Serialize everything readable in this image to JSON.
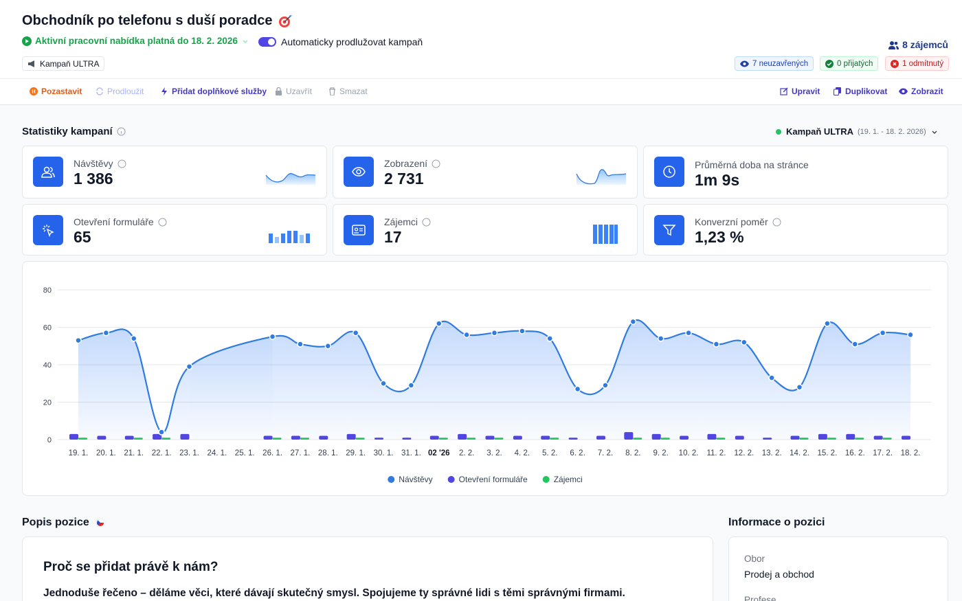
{
  "header": {
    "title": "Obchodník po telefonu s duší poradce",
    "status": "Aktivní pracovní nabídka platná do 18. 2. 2026",
    "toggle_label": "Automaticky prodlužovat kampaň",
    "badge": "Kampaň ULTRA",
    "candidates": "8 zájemců",
    "counts": [
      "7 neuzavřených",
      "0 přijatých",
      "1 odmítnutý"
    ]
  },
  "toolbar": {
    "left": [
      "Pozastavit",
      "Prodloužit",
      "Přidat doplňkové služby",
      "Uzavřít",
      "Smazat"
    ],
    "right": [
      "Upravit",
      "Duplikovat",
      "Zobrazit"
    ]
  },
  "stats": {
    "title": "Statistiky kampaní",
    "campaign": "Kampaň ULTRA",
    "period": "(19. 1. - 18. 2. 2026)",
    "cards": [
      {
        "label": "Návštěvy",
        "value": "1 386"
      },
      {
        "label": "Zobrazení",
        "value": "2 731"
      },
      {
        "label": "Průměrná doba na stránce",
        "value": "1m 9s"
      },
      {
        "label": "Otevření formuláře",
        "value": "65"
      },
      {
        "label": "Zájemci",
        "value": "17"
      },
      {
        "label": "Konverzní poměr",
        "value": "1,23 %"
      }
    ]
  },
  "chart_data": {
    "type": "line",
    "categories": [
      "19. 1.",
      "20. 1.",
      "21. 1.",
      "22. 1.",
      "23. 1.",
      "24. 1.",
      "25. 1.",
      "26. 1.",
      "27. 1.",
      "28. 1.",
      "29. 1.",
      "30. 1.",
      "31. 1.",
      "02 '26",
      "2. 2.",
      "3. 2.",
      "4. 2.",
      "5. 2.",
      "6. 2.",
      "7. 2.",
      "8. 2.",
      "9. 2.",
      "10. 2.",
      "11. 2.",
      "12. 2.",
      "13. 2.",
      "14. 2.",
      "15. 2.",
      "16. 2.",
      "17. 2.",
      "18. 2."
    ],
    "series": [
      {
        "name": "Návštěvy",
        "type": "line",
        "color": "#2f7be0",
        "values": [
          53,
          57,
          54,
          4,
          39,
          null,
          null,
          55,
          51,
          50,
          57,
          30,
          29,
          62,
          56,
          57,
          58,
          54,
          27,
          29,
          63,
          54,
          57,
          51,
          52,
          33,
          28,
          62,
          51,
          57,
          56
        ]
      },
      {
        "name": "Otevření formuláře",
        "type": "bar",
        "color": "#5146e0",
        "values": [
          3,
          2,
          2,
          3,
          3,
          0,
          0,
          2,
          2,
          2,
          3,
          1,
          1,
          2,
          3,
          2,
          2,
          2,
          1,
          2,
          4,
          3,
          2,
          3,
          2,
          1,
          2,
          3,
          3,
          2,
          2
        ]
      },
      {
        "name": "Zájemci",
        "type": "bar",
        "color": "#22c55e",
        "values": [
          1,
          0,
          1,
          1,
          0,
          0,
          0,
          1,
          1,
          0,
          1,
          0,
          0,
          1,
          1,
          1,
          0,
          1,
          0,
          0,
          1,
          1,
          0,
          1,
          0,
          0,
          1,
          1,
          1,
          1,
          0
        ]
      }
    ],
    "ylim": [
      0,
      80
    ],
    "yticks": [
      0,
      20,
      40,
      60,
      80
    ],
    "grid": true,
    "legend": "bottom"
  },
  "description": {
    "title": "Popis pozice",
    "heading": "Proč se přidat právě k nám?",
    "text": "Jednoduše řečeno – děláme věci, které dávají skutečný smysl. Spojujeme ty správné lidi s těmi správnými firmami."
  },
  "info": {
    "title": "Informace o pozici",
    "fields": [
      {
        "label": "Obor",
        "value": "Prodej a obchod"
      },
      {
        "label": "Profese"
      }
    ]
  }
}
